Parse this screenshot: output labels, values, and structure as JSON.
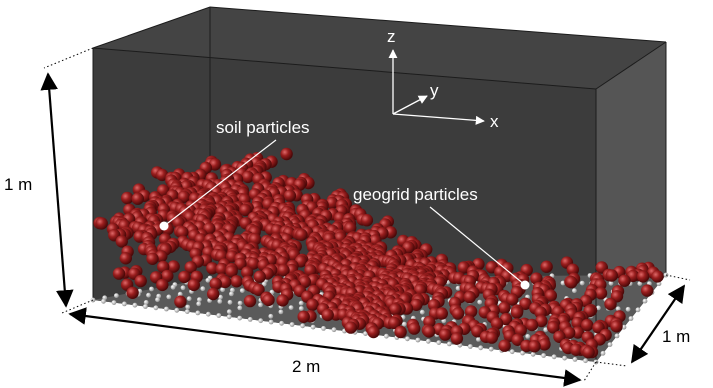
{
  "labels": {
    "soil": "soil particles",
    "geogrid": "geogrid particles",
    "height": "1 m",
    "length": "2 m",
    "depth": "1 m"
  },
  "axes": {
    "z": "z",
    "y": "y",
    "x": "x"
  },
  "colors": {
    "box_back": "#3a3a3a",
    "box_side": "#575757",
    "floor": "#5e5e5e",
    "soil": "#8b1a1a",
    "soil_highlight": "#d05050",
    "geogrid": "#c8c8c8",
    "axes": "#ffffff"
  }
}
